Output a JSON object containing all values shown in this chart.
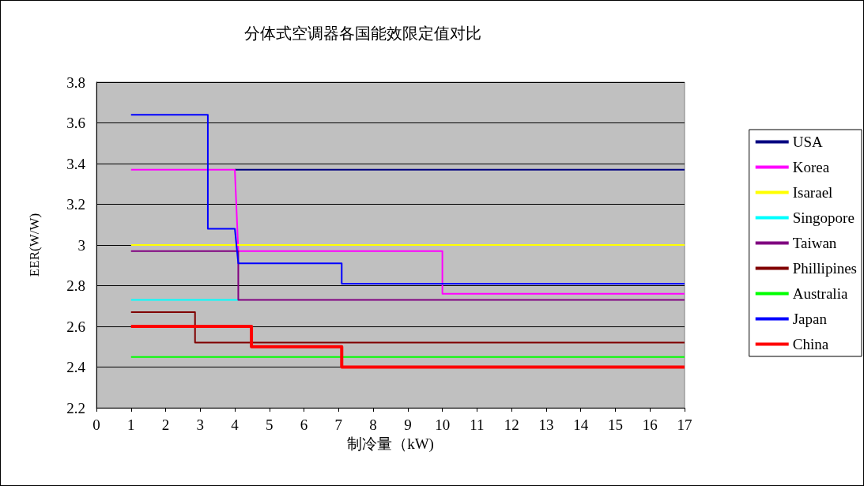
{
  "chart_data": {
    "type": "line",
    "title": "分体式空调器各国能效限定值对比",
    "xlabel": "制冷量（kW)",
    "ylabel": "EER(W/W)",
    "xlim": [
      0,
      17
    ],
    "xticks": [
      0,
      1,
      2,
      3,
      4,
      5,
      6,
      7,
      8,
      9,
      10,
      11,
      12,
      13,
      14,
      15,
      16,
      17
    ],
    "ylim": [
      2.2,
      3.8
    ],
    "yticks": [
      2.2,
      2.4,
      2.6,
      2.8,
      3,
      3.2,
      3.4,
      3.6,
      3.8
    ],
    "grid": "y",
    "legend": "right",
    "marker": "none",
    "line_style": "solid",
    "series": [
      {
        "name": "USA",
        "color": "#000080",
        "x": [
          4,
          10,
          17
        ],
        "values": [
          3.37,
          3.37,
          3.37
        ]
      },
      {
        "name": "Korea",
        "color": "#ff00ff",
        "x": [
          1,
          4,
          4.1,
          10,
          10,
          17
        ],
        "values": [
          3.37,
          3.37,
          2.97,
          2.97,
          2.76,
          2.76
        ]
      },
      {
        "name": "Isarael",
        "color": "#ffff00",
        "x": [
          1,
          10,
          17
        ],
        "values": [
          3.0,
          3.0,
          3.0
        ]
      },
      {
        "name": "Singopore",
        "color": "#00ffff",
        "x": [
          1,
          4.1
        ],
        "values": [
          2.73,
          2.73
        ]
      },
      {
        "name": "Taiwan",
        "color": "#800080",
        "x": [
          1,
          4.1,
          4.1,
          10,
          17
        ],
        "values": [
          2.97,
          2.97,
          2.73,
          2.73,
          2.73
        ]
      },
      {
        "name": "Phillipines",
        "color": "#800000",
        "x": [
          1,
          2.85,
          2.85,
          10,
          17
        ],
        "values": [
          2.67,
          2.67,
          2.52,
          2.52,
          2.52
        ]
      },
      {
        "name": "Australia",
        "color": "#00ff00",
        "x": [
          1,
          10,
          17
        ],
        "values": [
          2.45,
          2.45,
          2.45
        ]
      },
      {
        "name": "Japan",
        "color": "#0000ff",
        "x": [
          1,
          3.22,
          3.22,
          4,
          4.1,
          7.09,
          7.09,
          10,
          17
        ],
        "values": [
          3.64,
          3.64,
          3.08,
          3.08,
          2.91,
          2.91,
          2.81,
          2.81,
          2.81
        ]
      },
      {
        "name": "China",
        "color": "#ff0000",
        "x": [
          1,
          4.48,
          4.48,
          7.09,
          7.09,
          10,
          17
        ],
        "values": [
          2.6,
          2.6,
          2.5,
          2.5,
          2.4,
          2.4,
          2.4
        ]
      }
    ]
  }
}
